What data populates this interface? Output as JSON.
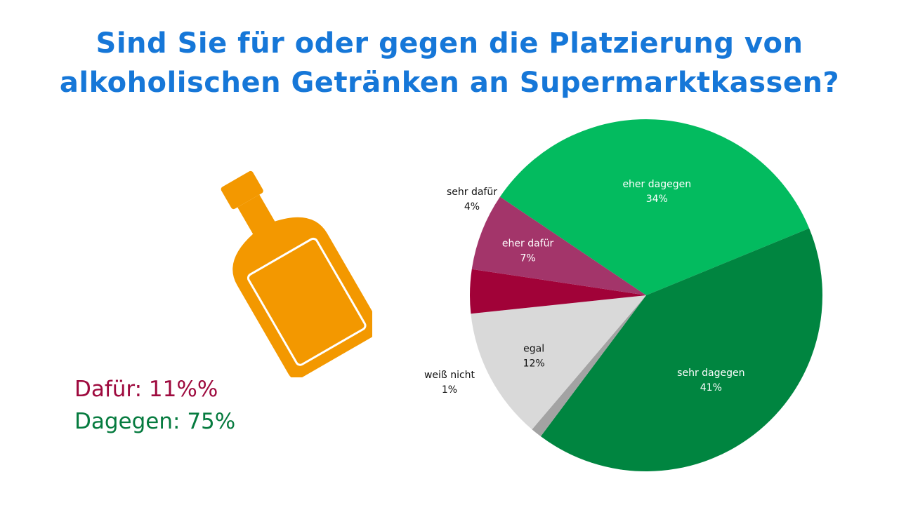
{
  "chart_data": {
    "type": "pie",
    "title_lines": [
      "Sind Sie für oder gegen die Platzierung von",
      "alkoholischen Getränken an Supermarktkassen?"
    ],
    "slices": [
      {
        "label": "eher dagegen",
        "value": 34,
        "value_label": "34%",
        "color": "#03bb5f",
        "label_color": "#ffffff"
      },
      {
        "label": "sehr dagegen",
        "value": 41,
        "value_label": "41%",
        "color": "#008540",
        "label_color": "#ffffff"
      },
      {
        "label": "weiß nicht",
        "value": 1,
        "value_label": "1%",
        "color": "#a3a3a3",
        "label_color": "#111111"
      },
      {
        "label": "egal",
        "value": 12,
        "value_label": "12%",
        "color": "#d9d9d9",
        "label_color": "#111111"
      },
      {
        "label": "sehr dafür",
        "value": 4,
        "value_label": "4%",
        "color": "#a10238",
        "label_color": "#111111"
      },
      {
        "label": "eher dafür",
        "value": 7,
        "value_label": "7%",
        "color": "#a3356a",
        "label_color": "#ffffff"
      }
    ]
  },
  "summary": {
    "for_text": "Dafür: 11%%",
    "against_text": "Dagegen: 75%"
  },
  "icon": "bottle-icon",
  "colors": {
    "title": "#1677d8",
    "bottle": "#f39800"
  }
}
